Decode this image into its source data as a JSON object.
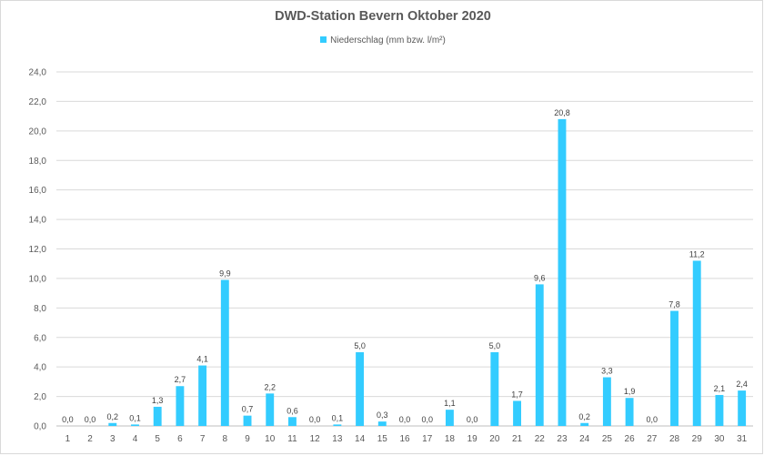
{
  "chart_data": {
    "type": "bar",
    "title": "DWD-Station  Bevern Oktober 2020",
    "xlabel": "",
    "ylabel": "",
    "ylim": [
      0,
      24
    ],
    "yticks": [
      "0,0",
      "2,0",
      "4,0",
      "6,0",
      "8,0",
      "10,0",
      "12,0",
      "14,0",
      "16,0",
      "18,0",
      "20,0",
      "22,0",
      "24,0"
    ],
    "grid": true,
    "legend_position": "top",
    "color": "#33CCFF",
    "categories": [
      "1",
      "2",
      "3",
      "4",
      "5",
      "6",
      "7",
      "8",
      "9",
      "10",
      "11",
      "12",
      "13",
      "14",
      "15",
      "16",
      "17",
      "18",
      "19",
      "20",
      "21",
      "22",
      "23",
      "24",
      "25",
      "26",
      "27",
      "28",
      "29",
      "30",
      "31"
    ],
    "series": [
      {
        "name": "Niederschlag (mm bzw. l/m²)",
        "values": [
          0.0,
          0.0,
          0.2,
          0.1,
          1.3,
          2.7,
          4.1,
          9.9,
          0.7,
          2.2,
          0.6,
          0.0,
          0.1,
          5.0,
          0.3,
          0.0,
          0.0,
          1.1,
          0.0,
          5.0,
          1.7,
          9.6,
          20.8,
          0.2,
          3.3,
          1.9,
          0.0,
          7.8,
          11.2,
          2.1,
          2.4
        ],
        "labels": [
          "0,0",
          "0,0",
          "0,2",
          "0,1",
          "1,3",
          "2,7",
          "4,1",
          "9,9",
          "0,7",
          "2,2",
          "0,6",
          "0,0",
          "0,1",
          "5,0",
          "0,3",
          "0,0",
          "0,0",
          "1,1",
          "0,0",
          "5,0",
          "1,7",
          "9,6",
          "20,8",
          "0,2",
          "3,3",
          "1,9",
          "0,0",
          "7,8",
          "11,2",
          "2,1",
          "2,4"
        ]
      }
    ]
  }
}
